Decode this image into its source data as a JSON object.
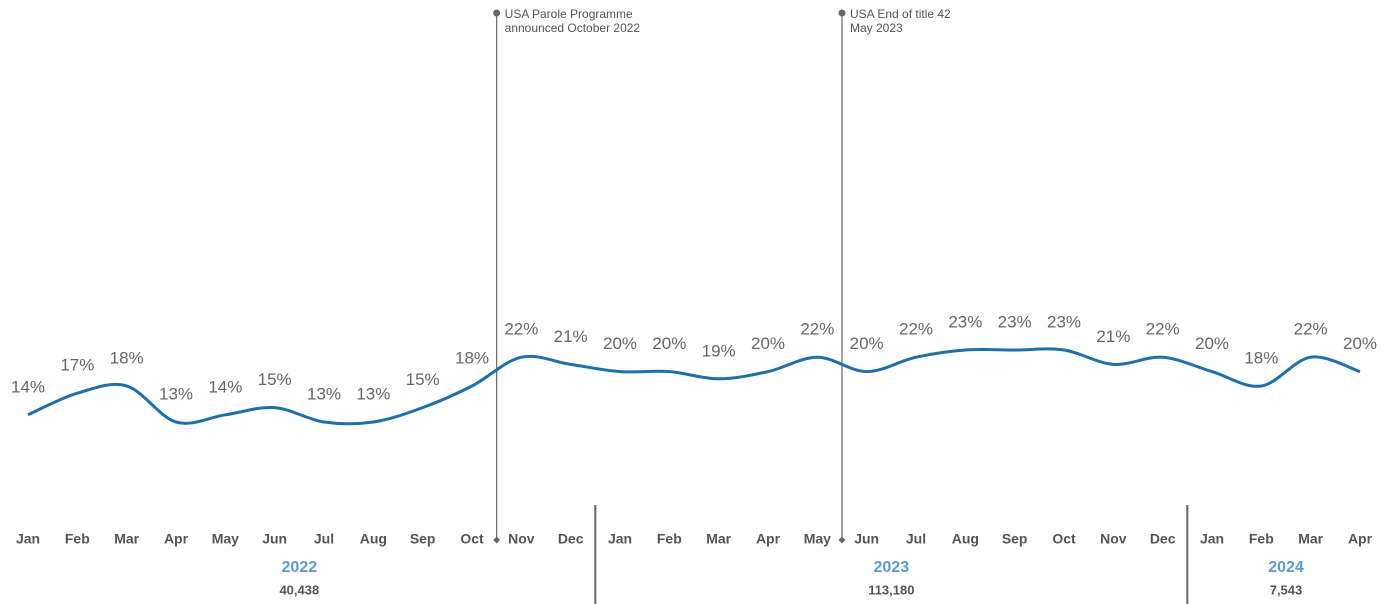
{
  "chart_data": {
    "type": "line",
    "categories": [
      "Jan",
      "Feb",
      "Mar",
      "Apr",
      "May",
      "Jun",
      "Jul",
      "Aug",
      "Sep",
      "Oct",
      "Nov",
      "Dec",
      "Jan",
      "Feb",
      "Mar",
      "Apr",
      "May",
      "Jun",
      "Jul",
      "Aug",
      "Sep",
      "Oct",
      "Nov",
      "Dec",
      "Jan",
      "Feb",
      "Mar",
      "Apr"
    ],
    "series": [
      {
        "color": "#1f6fa8",
        "values": [
          14,
          17,
          18,
          13,
          14,
          15,
          13,
          13,
          15,
          18,
          22,
          21,
          20,
          20,
          19,
          20,
          22,
          20,
          22,
          23,
          23,
          23,
          21,
          22,
          20,
          18,
          22,
          20
        ],
        "value_labels": [
          "14%",
          "17%",
          "18%",
          "13%",
          "14%",
          "15%",
          "13%",
          "13%",
          "15%",
          "18%",
          "22%",
          "21%",
          "20%",
          "20%",
          "19%",
          "20%",
          "22%",
          "20%",
          "22%",
          "23%",
          "23%",
          "23%",
          "21%",
          "22%",
          "20%",
          "18%",
          "22%",
          "20%"
        ]
      }
    ],
    "years": [
      {
        "name": "2022",
        "total": {
          "value": 40438,
          "label": "40,438"
        }
      },
      {
        "name": "2023",
        "total": {
          "value": 113180,
          "label": "113,180"
        }
      },
      {
        "name": "2024",
        "total": {
          "value": 7543,
          "label": "7,543"
        }
      }
    ],
    "annotations": [
      {
        "lines": [
          "USA Parole Programme",
          "announced October 2022"
        ]
      },
      {
        "lines": [
          "USA End of title 42",
          "May 2023"
        ]
      }
    ]
  }
}
